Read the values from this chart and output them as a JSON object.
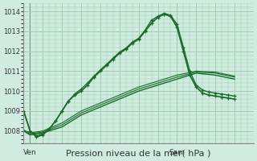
{
  "bg_color": "#d0ece0",
  "grid_color": "#a0ccb0",
  "line_color": "#1a6b2a",
  "xlabel": "Pression niveau de la mer( hPa )",
  "xlabel_fontsize": 8,
  "yticks": [
    1008,
    1009,
    1010,
    1011,
    1012,
    1013,
    1014
  ],
  "ylim": [
    1007.4,
    1014.4
  ],
  "xlim": [
    0,
    36
  ],
  "ven_x": 1,
  "sam_x": 24,
  "ven_label": "Ven",
  "sam_label": "Sam",
  "series": [
    {
      "x": [
        0,
        1,
        2,
        3,
        4,
        5,
        6,
        7,
        8,
        9,
        10,
        11,
        12,
        13,
        14,
        15,
        16,
        17,
        18,
        19,
        20,
        21,
        22,
        23,
        24,
        25,
        26,
        27,
        28,
        29,
        30,
        31,
        32,
        33
      ],
      "y": [
        1009.0,
        1008.0,
        1007.7,
        1007.8,
        1008.1,
        1008.5,
        1009.0,
        1009.5,
        1009.8,
        1010.0,
        1010.3,
        1010.7,
        1011.0,
        1011.3,
        1011.6,
        1011.9,
        1012.1,
        1012.4,
        1012.6,
        1013.0,
        1013.4,
        1013.7,
        1013.85,
        1013.75,
        1013.2,
        1012.0,
        1010.8,
        1010.2,
        1009.9,
        1009.8,
        1009.75,
        1009.7,
        1009.65,
        1009.6
      ],
      "lw": 1.2,
      "marker": true
    },
    {
      "x": [
        0,
        1,
        2,
        3,
        4,
        5,
        6,
        7,
        8,
        9,
        10,
        11,
        12,
        13,
        14,
        15,
        16,
        17,
        18,
        19,
        20,
        21,
        22,
        23,
        24,
        25,
        26,
        27,
        28,
        29,
        30,
        31,
        32,
        33
      ],
      "y": [
        1009.0,
        1008.0,
        1007.75,
        1007.85,
        1008.1,
        1008.5,
        1009.0,
        1009.5,
        1009.85,
        1010.1,
        1010.4,
        1010.75,
        1011.05,
        1011.35,
        1011.65,
        1011.95,
        1012.15,
        1012.45,
        1012.65,
        1013.05,
        1013.55,
        1013.75,
        1013.9,
        1013.8,
        1013.35,
        1012.2,
        1011.0,
        1010.3,
        1010.05,
        1009.95,
        1009.9,
        1009.85,
        1009.8,
        1009.75
      ],
      "lw": 1.0,
      "marker": true
    },
    {
      "x": [
        0,
        1,
        3,
        6,
        9,
        12,
        15,
        18,
        21,
        24,
        27,
        30,
        33
      ],
      "y": [
        1008.0,
        1007.8,
        1007.9,
        1008.2,
        1008.8,
        1009.2,
        1009.6,
        1010.0,
        1010.3,
        1010.6,
        1010.9,
        1010.8,
        1010.6
      ],
      "lw": 1.0,
      "marker": false
    },
    {
      "x": [
        0,
        1,
        3,
        6,
        9,
        12,
        15,
        18,
        21,
        24,
        27,
        30,
        33
      ],
      "y": [
        1008.0,
        1007.85,
        1007.95,
        1008.3,
        1008.9,
        1009.3,
        1009.7,
        1010.1,
        1010.4,
        1010.7,
        1010.95,
        1010.9,
        1010.7
      ],
      "lw": 0.8,
      "marker": false
    },
    {
      "x": [
        0,
        1,
        3,
        6,
        9,
        12,
        15,
        18,
        21,
        24,
        27,
        30,
        33
      ],
      "y": [
        1008.05,
        1007.9,
        1008.0,
        1008.4,
        1009.0,
        1009.4,
        1009.8,
        1010.2,
        1010.5,
        1010.8,
        1011.0,
        1010.95,
        1010.75
      ],
      "lw": 0.8,
      "marker": false
    }
  ]
}
